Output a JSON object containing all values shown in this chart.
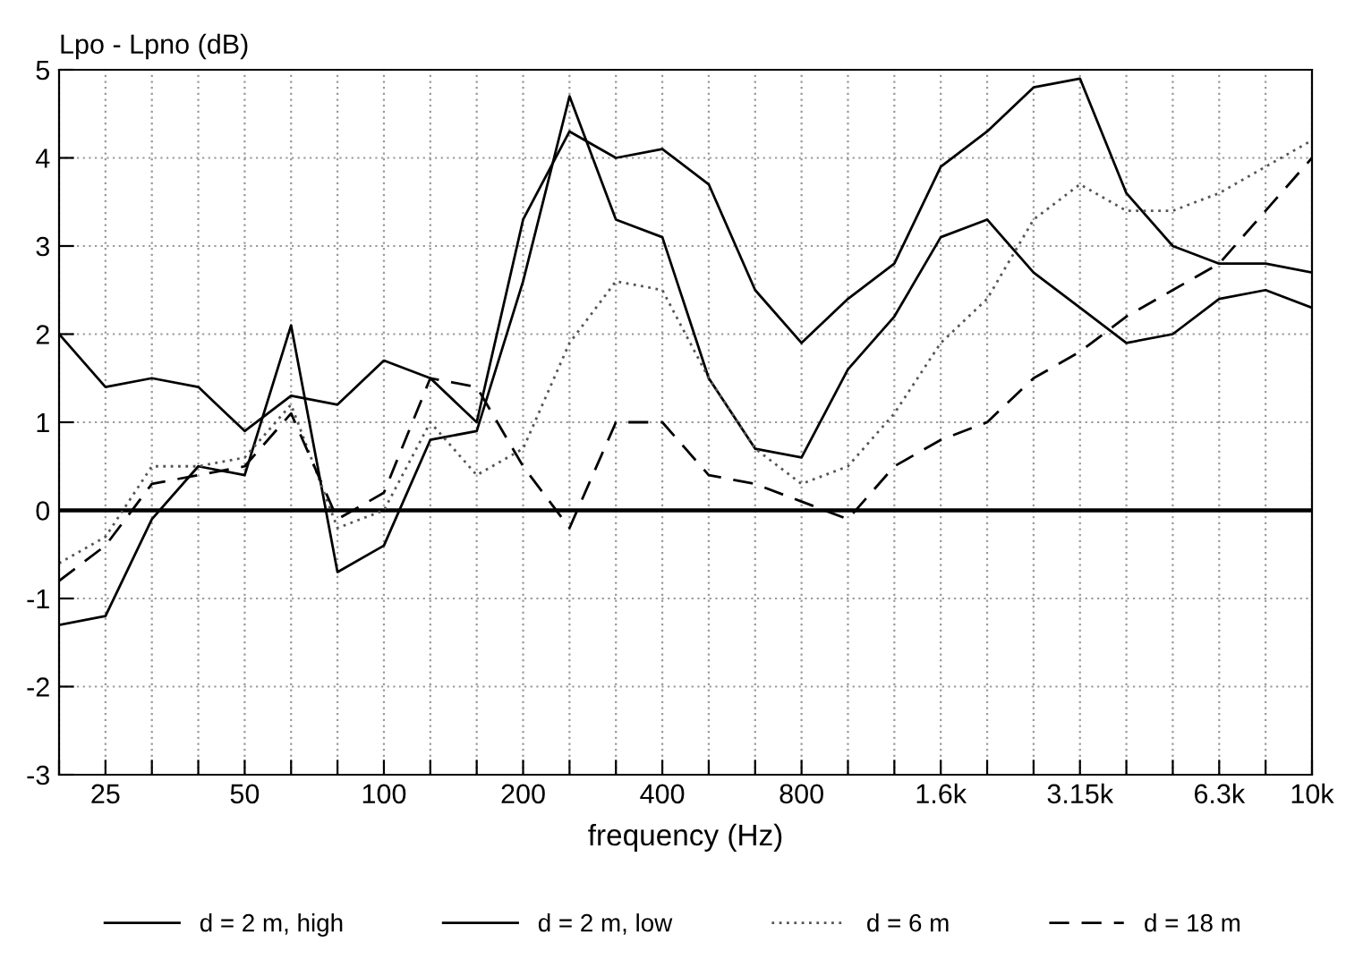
{
  "chart_data": {
    "type": "line",
    "ylabel": "Lpo - Lpno (dB)",
    "xlabel": "frequency (Hz)",
    "categories": [
      null,
      "25",
      null,
      null,
      "50",
      null,
      null,
      "100",
      null,
      null,
      "200",
      null,
      null,
      "400",
      null,
      null,
      "800",
      null,
      null,
      "1.6k",
      null,
      null,
      "3.15k",
      null,
      null,
      "6.3k",
      null,
      "10k"
    ],
    "ylim": [
      -3,
      5
    ],
    "yticks": [
      -3,
      -2,
      -1,
      0,
      1,
      2,
      3,
      4,
      5
    ],
    "grid": true,
    "legend": "bottom",
    "marker": "none",
    "ref_lines": [
      {
        "axis": "y",
        "value": 0,
        "color": "#000000",
        "line_style": "solid"
      }
    ],
    "series": [
      {
        "name": "d = 2 m, high",
        "color": "#000000",
        "line_style": "solid",
        "values": [
          2.0,
          1.4,
          1.5,
          1.4,
          0.9,
          1.3,
          1.2,
          1.7,
          1.5,
          1.0,
          3.3,
          4.3,
          4.0,
          4.1,
          3.7,
          2.5,
          1.9,
          2.4,
          2.8,
          3.9,
          4.3,
          4.8,
          4.9,
          3.6,
          3.0,
          2.8,
          2.8,
          2.7
        ]
      },
      {
        "name": "d = 2 m, low",
        "color": "#000000",
        "line_style": "solid",
        "values": [
          -1.3,
          -1.2,
          -0.1,
          0.5,
          0.4,
          2.1,
          -0.7,
          -0.4,
          0.8,
          0.9,
          2.6,
          4.7,
          3.3,
          3.1,
          1.5,
          0.7,
          0.6,
          1.6,
          2.2,
          3.1,
          3.3,
          2.7,
          2.3,
          1.9,
          2.0,
          2.4,
          2.5,
          2.3
        ]
      },
      {
        "name": "d = 6 m",
        "color": "#555555",
        "line_style": "dotted",
        "values": [
          -0.6,
          -0.3,
          0.5,
          0.5,
          0.6,
          1.2,
          -0.2,
          0.0,
          1.0,
          0.4,
          0.7,
          1.9,
          2.6,
          2.5,
          1.5,
          0.7,
          0.3,
          0.5,
          1.1,
          1.9,
          2.4,
          3.3,
          3.7,
          3.4,
          3.4,
          3.6,
          3.9,
          4.2
        ]
      },
      {
        "name": "d = 18 m",
        "color": "#000000",
        "line_style": "dashed",
        "values": [
          -0.8,
          -0.4,
          0.3,
          0.4,
          0.5,
          1.1,
          -0.1,
          0.2,
          1.5,
          1.4,
          0.5,
          -0.2,
          1.0,
          1.0,
          0.4,
          0.3,
          0.1,
          -0.1,
          0.5,
          0.8,
          1.0,
          1.5,
          1.8,
          2.2,
          2.5,
          2.8,
          3.4,
          4.0
        ]
      }
    ]
  }
}
